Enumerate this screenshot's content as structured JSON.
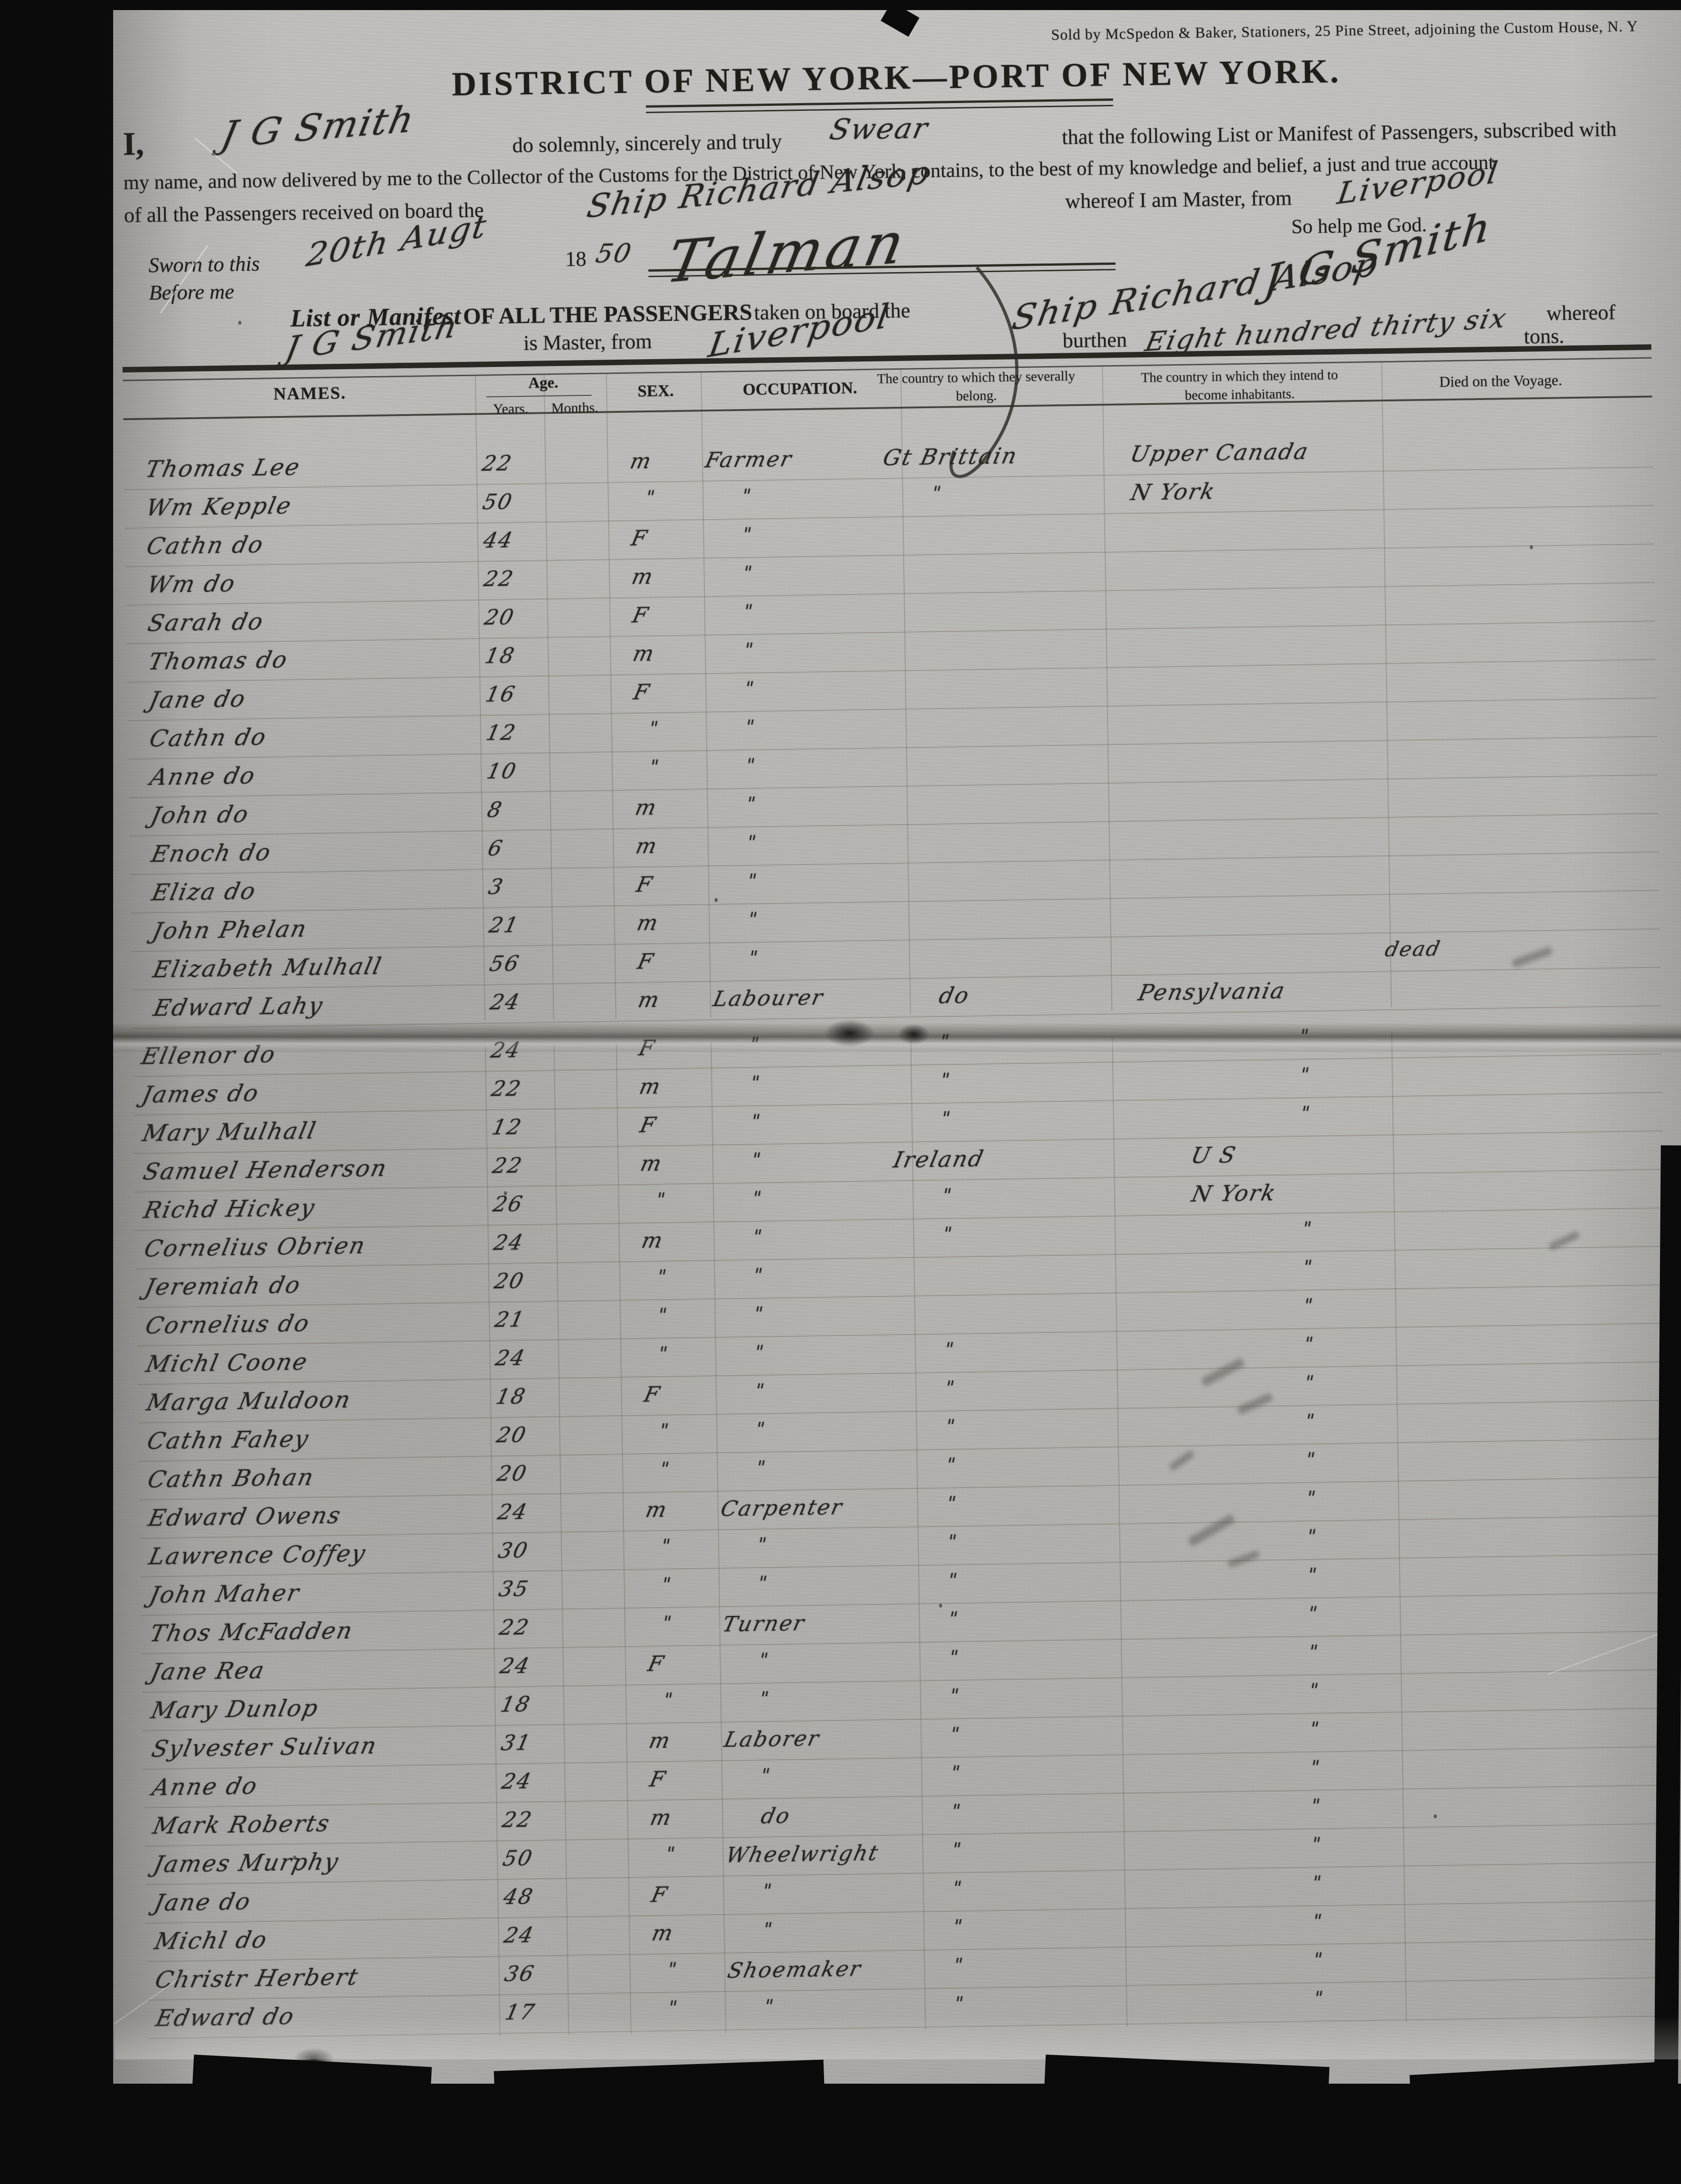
{
  "document": {
    "vendor_line": "Sold by McSpedon & Baker, Stationers, 25 Pine Street, adjoining the Custom House, N. Y",
    "title": "DISTRICT OF NEW YORK—PORT OF NEW YORK.",
    "oath": {
      "intro_i": "I,",
      "master_name_hw": "J G Smith",
      "line1_a": "do solemnly, sincerely and truly",
      "swear_hw": "Swear",
      "line1_b": "that the following List or Manifest of Passengers, subscribed with",
      "line2": "my name, and now delivered by me to the Collector of the Customs for the District of New York, contains, to the best of my knowledge and belief, a just and true account",
      "line3": "of all the Passengers received on board the",
      "ship_hw": "Ship Richard Alsop",
      "whereof_master_from": "whereof I am Master, from",
      "port_hw": "Liverpool",
      "so_help": "So help me God.",
      "sworn_label": "Sworn to this",
      "sworn_date_hw": "20th Augt",
      "year_printed": "18",
      "year_hw": "50",
      "clerk_sig_hw": "Talman",
      "master_sig_hw": "J G Smith",
      "before_me": "Before me"
    },
    "manifest_line": {
      "gothic": "List or Manifest",
      "caps": "OF ALL THE PASSENGERS",
      "taken": "taken on board the",
      "ship_hw": "Ship Richard Alsop",
      "whereof": "whereof",
      "master_hw": "J G Smith",
      "is_master": "is Master, from",
      "port_hw": "Liverpool",
      "burthen": "burthen",
      "burthen_hw": "Eight hundred thirty six",
      "tons": "tons."
    },
    "table": {
      "headers": {
        "names": "NAMES.",
        "age": "Age.",
        "years": "Years.",
        "months": "Months.",
        "sex": "SEX.",
        "occupation": "OCCUPATION.",
        "belong_1": "The country to which they severally",
        "belong_2": "belong.",
        "intend_1": "The country in which they intend to",
        "intend_2": "become inhabitants.",
        "died": "Died on the Voyage."
      },
      "field_order": [
        "name",
        "age",
        "sex",
        "occupation",
        "belong",
        "intend",
        "died"
      ],
      "page1_rows": [
        [
          "Thomas Lee",
          "22",
          "m",
          "Farmer",
          "Gt Brittain",
          "Upper Canada",
          ""
        ],
        [
          "Wm Kepple",
          "50",
          "\"",
          "\"",
          "\"",
          "N York",
          ""
        ],
        [
          "Cathn do",
          "44",
          "F",
          "\"",
          "",
          "",
          ""
        ],
        [
          "Wm do",
          "22",
          "m",
          "\"",
          "",
          "",
          ""
        ],
        [
          "Sarah do",
          "20",
          "F",
          "\"",
          "",
          "",
          ""
        ],
        [
          "Thomas do",
          "18",
          "m",
          "\"",
          "",
          "",
          ""
        ],
        [
          "Jane do",
          "16",
          "F",
          "\"",
          "",
          "",
          ""
        ],
        [
          "Cathn do",
          "12",
          "\"",
          "\"",
          "",
          "",
          ""
        ],
        [
          "Anne do",
          "10",
          "\"",
          "\"",
          "",
          "",
          ""
        ],
        [
          "John do",
          "8",
          "m",
          "\"",
          "",
          "",
          ""
        ],
        [
          "Enoch do",
          "6",
          "m",
          "\"",
          "",
          "",
          ""
        ],
        [
          "Eliza do",
          "3",
          "F",
          "\"",
          "",
          "",
          ""
        ],
        [
          "John Phelan",
          "21",
          "m",
          "\"",
          "",
          "",
          ""
        ],
        [
          "Elizabeth Mulhall",
          "56",
          "F",
          "\"",
          "",
          "",
          "dead"
        ],
        [
          "Edward Lahy",
          "24",
          "m",
          "Labourer",
          "do",
          "Pensylvania",
          ""
        ]
      ],
      "page2_rows": [
        [
          "Ellenor do",
          "24",
          "F",
          "\"",
          "\"",
          "\"",
          ""
        ],
        [
          "James do",
          "22",
          "m",
          "\"",
          "\"",
          "\"",
          ""
        ],
        [
          "Mary Mulhall",
          "12",
          "F",
          "\"",
          "\"",
          "\"",
          ""
        ],
        [
          "Samuel Henderson",
          "22",
          "m",
          "\"",
          "Ireland",
          "U S",
          ""
        ],
        [
          "Richd Hickey",
          "26",
          "\"",
          "\"",
          "\"",
          "N York",
          ""
        ],
        [
          "Cornelius Obrien",
          "24",
          "m",
          "\"",
          "\"",
          "\"",
          ""
        ],
        [
          "Jeremiah do",
          "20",
          "\"",
          "\"",
          "",
          "\"",
          ""
        ],
        [
          "Cornelius do",
          "21",
          "\"",
          "\"",
          "",
          "\"",
          ""
        ],
        [
          "Michl Coone",
          "24",
          "\"",
          "\"",
          "\"",
          "\"",
          ""
        ],
        [
          "Marga Muldoon",
          "18",
          "F",
          "\"",
          "\"",
          "\"",
          ""
        ],
        [
          "Cathn Fahey",
          "20",
          "\"",
          "\"",
          "\"",
          "\"",
          ""
        ],
        [
          "Cathn Bohan",
          "20",
          "\"",
          "\"",
          "\"",
          "\"",
          ""
        ],
        [
          "Edward Owens",
          "24",
          "m",
          "Carpenter",
          "\"",
          "\"",
          ""
        ],
        [
          "Lawrence Coffey",
          "30",
          "\"",
          "\"",
          "\"",
          "\"",
          ""
        ],
        [
          "John Maher",
          "35",
          "\"",
          "\"",
          "\"",
          "\"",
          ""
        ],
        [
          "Thos McFadden",
          "22",
          "\"",
          "Turner",
          "\"",
          "\"",
          ""
        ],
        [
          "Jane Rea",
          "24",
          "F",
          "\"",
          "\"",
          "\"",
          ""
        ],
        [
          "Mary Dunlop",
          "18",
          "\"",
          "\"",
          "\"",
          "\"",
          ""
        ],
        [
          "Sylvester Sulivan",
          "31",
          "m",
          "Laborer",
          "\"",
          "\"",
          ""
        ],
        [
          "Anne do",
          "24",
          "F",
          "\"",
          "\"",
          "\"",
          ""
        ],
        [
          "Mark Roberts",
          "22",
          "m",
          "do",
          "\"",
          "\"",
          ""
        ],
        [
          "James Murphy",
          "50",
          "\"",
          "Wheelwright",
          "\"",
          "\"",
          ""
        ],
        [
          "Jane do",
          "48",
          "F",
          "\"",
          "\"",
          "\"",
          ""
        ],
        [
          "Michl do",
          "24",
          "m",
          "\"",
          "\"",
          "\"",
          ""
        ],
        [
          "Christr Herbert",
          "36",
          "\"",
          "Shoemaker",
          "\"",
          "\"",
          ""
        ],
        [
          "Edward do",
          "17",
          "\"",
          "\"",
          "\"",
          "\"",
          ""
        ]
      ]
    }
  }
}
